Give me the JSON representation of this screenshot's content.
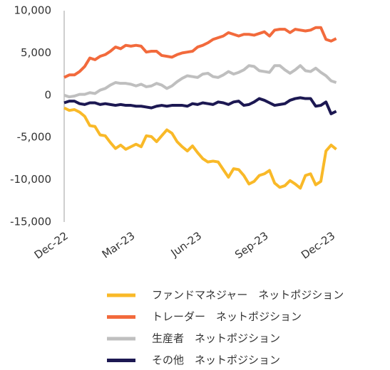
{
  "chart_data": {
    "type": "line",
    "categories": [
      "Dec-22",
      null,
      null,
      null,
      null,
      null,
      null,
      null,
      null,
      null,
      null,
      null,
      null,
      "Mar-23",
      null,
      null,
      null,
      null,
      null,
      null,
      null,
      null,
      null,
      null,
      null,
      null,
      "Jun-23",
      null,
      null,
      null,
      null,
      null,
      null,
      null,
      null,
      null,
      null,
      null,
      null,
      "Sep-23",
      null,
      null,
      null,
      null,
      null,
      null,
      null,
      null,
      null,
      null,
      null,
      null,
      "Dec-23",
      null
    ],
    "series": [
      {
        "name": "ファンドマネジャー　ネットポジション",
        "color": "#f9b928",
        "values": [
          -1500,
          -1800,
          -1700,
          -2000,
          -2500,
          -3600,
          -3700,
          -4700,
          -4800,
          -5600,
          -6300,
          -5900,
          -6400,
          -6100,
          -5800,
          -6100,
          -4800,
          -4900,
          -5500,
          -4800,
          -4100,
          -4500,
          -5500,
          -6100,
          -6600,
          -6000,
          -6800,
          -7500,
          -7900,
          -7800,
          -7900,
          -8800,
          -9700,
          -8700,
          -8800,
          -9500,
          -10500,
          -10200,
          -9500,
          -9300,
          -8900,
          -10400,
          -10900,
          -10700,
          -10100,
          -10500,
          -11000,
          -9500,
          -9300,
          -10600,
          -10200,
          -6600,
          -5900,
          -6400
        ]
      },
      {
        "name": "トレーダー　ネットポジション",
        "color": "#f26a3c",
        "values": [
          2100,
          2400,
          2400,
          2800,
          3400,
          4400,
          4200,
          4600,
          4800,
          5200,
          5700,
          5500,
          5900,
          5800,
          5900,
          5800,
          5100,
          5200,
          5200,
          4700,
          4600,
          4500,
          4800,
          5000,
          5100,
          5200,
          5700,
          5900,
          6200,
          6600,
          6800,
          7000,
          7400,
          7200,
          7000,
          7200,
          7200,
          7100,
          7300,
          7500,
          7000,
          7700,
          7800,
          7800,
          7400,
          7800,
          7700,
          7600,
          7700,
          8000,
          8000,
          6600,
          6400,
          6700
        ]
      },
      {
        "name": "生産者　ネットポジション",
        "color": "#bfbfbf",
        "values": [
          0,
          -200,
          -100,
          100,
          100,
          300,
          200,
          600,
          800,
          1200,
          1500,
          1400,
          1400,
          1300,
          1100,
          1300,
          1000,
          1100,
          1400,
          1200,
          800,
          1100,
          1600,
          2000,
          2300,
          2200,
          2100,
          2500,
          2600,
          2200,
          2100,
          2400,
          2800,
          2500,
          2700,
          3000,
          3500,
          3400,
          2900,
          2800,
          2700,
          3500,
          3500,
          3000,
          2600,
          3000,
          3500,
          2900,
          2800,
          3200,
          2700,
          2300,
          1700,
          1500
        ]
      },
      {
        "name": "その他　ネットポジション",
        "color": "#1c1852",
        "values": [
          -900,
          -700,
          -700,
          -1000,
          -1100,
          -900,
          -900,
          -1100,
          -1000,
          -1100,
          -1200,
          -1100,
          -1200,
          -1200,
          -1300,
          -1300,
          -1400,
          -1500,
          -1300,
          -1200,
          -1300,
          -1200,
          -1200,
          -1200,
          -1300,
          -1000,
          -1100,
          -900,
          -1000,
          -1100,
          -800,
          -900,
          -1100,
          -800,
          -700,
          -1200,
          -1100,
          -800,
          -400,
          -600,
          -900,
          -1200,
          -1100,
          -1000,
          -600,
          -400,
          -300,
          -400,
          -400,
          -1300,
          -1200,
          -800,
          -2200,
          -1900
        ]
      }
    ],
    "ylim": [
      -15000,
      10000
    ],
    "yticks": [
      {
        "value": -15000,
        "label": "-15,000"
      },
      {
        "value": -10000,
        "label": "-10,000"
      },
      {
        "value": -5000,
        "label": "-5,000"
      },
      0,
      {
        "value": 5000,
        "label": "5,000"
      },
      {
        "value": 10000,
        "label": "10,000"
      }
    ],
    "grid": false,
    "legend": "bottom"
  }
}
